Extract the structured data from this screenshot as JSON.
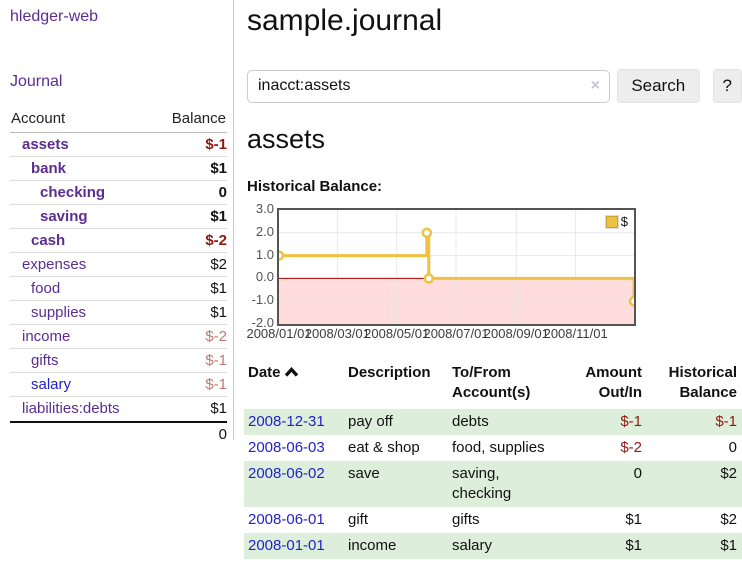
{
  "app": {
    "title": "hledger-web"
  },
  "sidebar": {
    "nav_journal": "Journal",
    "table": {
      "headers": {
        "account": "Account",
        "balance": "Balance"
      },
      "rows": [
        {
          "label": "assets",
          "indent": 0,
          "bold": true,
          "label_color": "purple",
          "balance": "$-1",
          "balance_color": "negative"
        },
        {
          "label": "bank",
          "indent": 1,
          "bold": true,
          "label_color": "purple",
          "balance": "$1",
          "balance_color": "normal"
        },
        {
          "label": "checking",
          "indent": 2,
          "bold": true,
          "label_color": "purple",
          "balance": "0",
          "balance_color": "normal"
        },
        {
          "label": "saving",
          "indent": 2,
          "bold": true,
          "label_color": "purple",
          "balance": "$1",
          "balance_color": "normal"
        },
        {
          "label": "cash",
          "indent": 1,
          "bold": true,
          "label_color": "purple",
          "balance": "$-2",
          "balance_color": "negative"
        },
        {
          "label": "expenses",
          "indent": 0,
          "bold": false,
          "label_color": "purple",
          "balance": "$2",
          "balance_color": "normal"
        },
        {
          "label": "food",
          "indent": 1,
          "bold": false,
          "label_color": "purple",
          "balance": "$1",
          "balance_color": "normal"
        },
        {
          "label": "supplies",
          "indent": 1,
          "bold": false,
          "label_color": "purple",
          "balance": "$1",
          "balance_color": "normal"
        },
        {
          "label": "income",
          "indent": 0,
          "bold": false,
          "label_color": "purple",
          "balance": "$-2",
          "balance_color": "negative-muted"
        },
        {
          "label": "gifts",
          "indent": 1,
          "bold": false,
          "label_color": "purple",
          "balance": "$-1",
          "balance_color": "negative-muted"
        },
        {
          "label": "salary",
          "indent": 1,
          "bold": false,
          "label_color": "blue",
          "balance": "$-1",
          "balance_color": "negative-muted"
        },
        {
          "label": "liabilities:debts",
          "indent": 0,
          "bold": false,
          "label_color": "purple",
          "balance": "$1",
          "balance_color": "normal"
        }
      ],
      "total": "0"
    }
  },
  "main": {
    "title": "sample.journal",
    "search": {
      "value": "inacct:assets",
      "clear_icon": "×",
      "button": "Search",
      "help_button": "?"
    },
    "account_heading": "assets",
    "chart_label": "Historical Balance:",
    "register": {
      "headers": {
        "date": "Date",
        "description": "Description",
        "accounts": "To/From\nAccount(s)",
        "amount": "Amount\nOut/In",
        "balance": "Historical\nBalance"
      },
      "sort": {
        "column": "date",
        "direction": "ascending"
      },
      "rows": [
        {
          "date": "2008-12-31",
          "description": "pay off",
          "accounts": "debts",
          "amount": "$-1",
          "amount_color": "negative",
          "balance": "$-1",
          "balance_color": "negative"
        },
        {
          "date": "2008-06-03",
          "description": "eat & shop",
          "accounts": "food, supplies",
          "amount": "$-2",
          "amount_color": "negative",
          "balance": "0",
          "balance_color": "normal"
        },
        {
          "date": "2008-06-02",
          "description": "save",
          "accounts": "saving,\nchecking",
          "amount": "0",
          "amount_color": "normal",
          "balance": "$2",
          "balance_color": "normal"
        },
        {
          "date": "2008-06-01",
          "description": "gift",
          "accounts": "gifts",
          "amount": "$1",
          "amount_color": "normal",
          "balance": "$2",
          "balance_color": "normal"
        },
        {
          "date": "2008-01-01",
          "description": "income",
          "accounts": "salary",
          "amount": "$1",
          "amount_color": "normal",
          "balance": "$1",
          "balance_color": "normal"
        }
      ]
    }
  },
  "chart_data": {
    "type": "line",
    "step": true,
    "title": "Historical Balance:",
    "series": [
      {
        "name": "$",
        "color": "#edc240",
        "points": [
          {
            "date": "2008-01-01",
            "day": 0,
            "value": 1
          },
          {
            "date": "2008-06-01",
            "day": 152,
            "value": 2
          },
          {
            "date": "2008-06-03",
            "day": 154,
            "value": 0
          },
          {
            "date": "2008-12-31",
            "day": 365,
            "value": -1
          }
        ]
      }
    ],
    "ylim": [
      -2,
      3
    ],
    "yticks": [
      "3.0",
      "2.0",
      "1.0",
      "0.0",
      "-1.0",
      "-2.0"
    ],
    "xticks": [
      {
        "label": "2008/01/01",
        "day": 0
      },
      {
        "label": "2008/03/01",
        "day": 60
      },
      {
        "label": "2008/05/01",
        "day": 121
      },
      {
        "label": "2008/07/01",
        "day": 182
      },
      {
        "label": "2008/09/01",
        "day": 244
      },
      {
        "label": "2008/11/01",
        "day": 305
      }
    ],
    "x_domain_days": 365,
    "grid": true,
    "negative_region_color": "#ffdddd",
    "zero_line_color": "#aa0000",
    "legend": {
      "label": "$",
      "position": "top-right"
    }
  },
  "colors": {
    "link_purple": "#5b2d91",
    "link_blue": "#2222cc",
    "negative": "#941610",
    "negative_muted": "#b97b74",
    "row_stripe_green": "#ddeeda",
    "series_gold": "#edc240"
  }
}
